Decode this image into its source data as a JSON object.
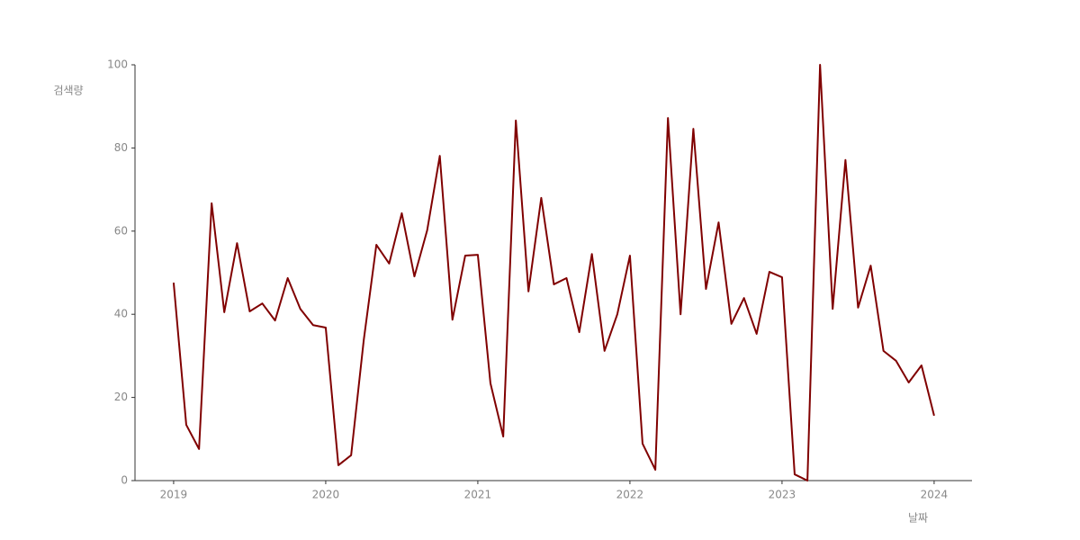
{
  "chart_data": {
    "type": "line",
    "ylabel": "검색량",
    "xlabel": "날짜",
    "x": [
      2019,
      2019.083,
      2019.167,
      2019.25,
      2019.333,
      2019.417,
      2019.5,
      2019.583,
      2019.667,
      2019.75,
      2019.833,
      2019.917,
      2020,
      2020.083,
      2020.167,
      2020.25,
      2020.333,
      2020.417,
      2020.5,
      2020.583,
      2020.667,
      2020.75,
      2020.833,
      2020.917,
      2021,
      2021.083,
      2021.167,
      2021.25,
      2021.333,
      2021.417,
      2021.5,
      2021.583,
      2021.667,
      2021.75,
      2021.833,
      2021.917,
      2022,
      2022.083,
      2022.167,
      2022.25,
      2022.333,
      2022.417,
      2022.5,
      2022.583,
      2022.667,
      2022.75,
      2022.833,
      2022.917,
      2023,
      2023.083,
      2023.167,
      2023.25,
      2023.333,
      2023.417,
      2023.5,
      2023.583,
      2023.667,
      2023.75,
      2023.833,
      2023.917,
      2024
    ],
    "values": [
      47.6,
      13.4,
      7.6,
      66.7,
      40.5,
      57.1,
      40.7,
      42.6,
      38.5,
      48.7,
      41.3,
      37.4,
      36.8,
      3.7,
      6.1,
      33.8,
      56.7,
      52.2,
      64.3,
      49.1,
      60.2,
      78.1,
      38.7,
      54.1,
      54.3,
      23.4,
      10.6,
      86.6,
      45.5,
      68.0,
      47.2,
      48.7,
      35.7,
      54.5,
      31.2,
      40.0,
      54.1,
      8.9,
      2.6,
      87.2,
      40.0,
      84.6,
      46.1,
      62.1,
      37.7,
      43.9,
      35.3,
      50.2,
      48.9,
      1.5,
      0,
      100,
      41.3,
      77.1,
      41.6,
      51.7,
      31.2,
      28.8,
      23.6,
      27.7,
      15.6
    ],
    "color": "#800000",
    "xlim": [
      2018.746,
      2024.249
    ],
    "xticks": [
      2019,
      2020,
      2021,
      2022,
      2023,
      2024
    ],
    "ylim": [
      0,
      100
    ],
    "yticks": [
      0,
      20,
      40,
      60,
      80,
      100
    ],
    "grid": false
  }
}
